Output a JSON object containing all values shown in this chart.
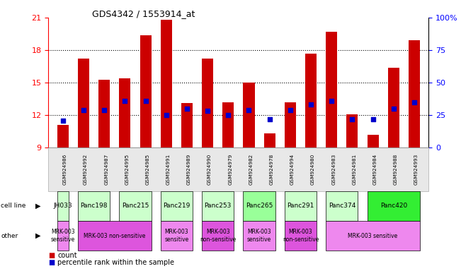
{
  "title": "GDS4342 / 1553914_at",
  "samples": [
    "GSM924986",
    "GSM924992",
    "GSM924987",
    "GSM924995",
    "GSM924985",
    "GSM924991",
    "GSM924989",
    "GSM924990",
    "GSM924979",
    "GSM924982",
    "GSM924978",
    "GSM924994",
    "GSM924980",
    "GSM924983",
    "GSM924981",
    "GSM924984",
    "GSM924988",
    "GSM924993"
  ],
  "bar_heights": [
    11.1,
    17.2,
    15.3,
    15.4,
    19.4,
    20.8,
    13.1,
    17.2,
    13.2,
    15.0,
    10.3,
    13.2,
    17.7,
    19.7,
    12.1,
    10.2,
    16.4,
    18.9
  ],
  "blue_markers": [
    11.5,
    12.5,
    12.5,
    13.3,
    13.3,
    12.0,
    12.6,
    12.4,
    12.0,
    12.5,
    11.6,
    12.5,
    13.0,
    13.3,
    11.6,
    11.6,
    12.6,
    13.2
  ],
  "bar_color": "#cc0000",
  "blue_color": "#0000cc",
  "ylim_left": [
    9,
    21
  ],
  "ylim_right": [
    0,
    100
  ],
  "yticks_left": [
    9,
    12,
    15,
    18,
    21
  ],
  "yticks_right": [
    0,
    25,
    50,
    75,
    100
  ],
  "ytick_labels_right": [
    "0",
    "25",
    "50",
    "75",
    "100%"
  ],
  "cell_lines": [
    {
      "label": "JH033",
      "start": 0,
      "end": 1,
      "color": "#ccffcc"
    },
    {
      "label": "Panc198",
      "start": 1,
      "end": 3,
      "color": "#ccffcc"
    },
    {
      "label": "Panc215",
      "start": 3,
      "end": 5,
      "color": "#ccffcc"
    },
    {
      "label": "Panc219",
      "start": 5,
      "end": 7,
      "color": "#ccffcc"
    },
    {
      "label": "Panc253",
      "start": 7,
      "end": 9,
      "color": "#ccffcc"
    },
    {
      "label": "Panc265",
      "start": 9,
      "end": 11,
      "color": "#99ff99"
    },
    {
      "label": "Panc291",
      "start": 11,
      "end": 13,
      "color": "#ccffcc"
    },
    {
      "label": "Panc374",
      "start": 13,
      "end": 15,
      "color": "#ccffcc"
    },
    {
      "label": "Panc420",
      "start": 15,
      "end": 18,
      "color": "#33ee33"
    }
  ],
  "other_groups": [
    {
      "label": "MRK-003\nsensitive",
      "start": 0,
      "end": 1,
      "color": "#ee88ee"
    },
    {
      "label": "MRK-003 non-sensitive",
      "start": 1,
      "end": 5,
      "color": "#dd55dd"
    },
    {
      "label": "MRK-003\nsensitive",
      "start": 5,
      "end": 7,
      "color": "#ee88ee"
    },
    {
      "label": "MRK-003\nnon-sensitive",
      "start": 7,
      "end": 9,
      "color": "#dd55dd"
    },
    {
      "label": "MRK-003\nsensitive",
      "start": 9,
      "end": 11,
      "color": "#ee88ee"
    },
    {
      "label": "MRK-003\nnon-sensitive",
      "start": 11,
      "end": 13,
      "color": "#dd55dd"
    },
    {
      "label": "MRK-003 sensitive",
      "start": 13,
      "end": 18,
      "color": "#ee88ee"
    }
  ],
  "bg_color": "#ffffff"
}
